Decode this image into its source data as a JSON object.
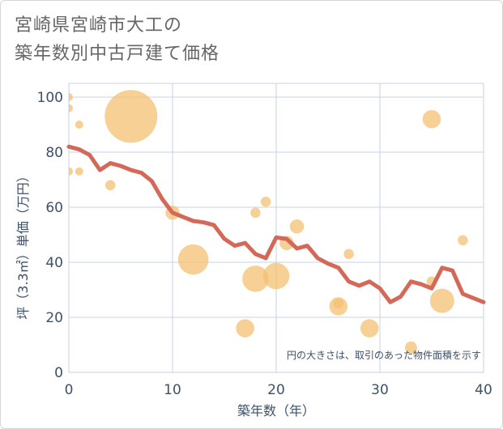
{
  "title_lines": [
    "宮崎県宮崎市大工の",
    "築年数別中古戸建て価格"
  ],
  "chart_data": {
    "type": "scatter",
    "title": "宮崎県宮崎市大工の築年数別中古戸建て価格",
    "xlabel": "築年数（年）",
    "ylabel": "坪（3.3㎡）単価（万円）",
    "xlim": [
      0,
      40
    ],
    "ylim": [
      0,
      105
    ],
    "xticks": [
      0,
      10,
      20,
      30,
      40
    ],
    "yticks": [
      0,
      20,
      40,
      60,
      80,
      100
    ],
    "grid": true,
    "note": "円の大きさは、取引のあった物件面積を示す",
    "colors": {
      "bubble": "#f3c072",
      "line": "#d4695a",
      "grid": "#c7d2e4",
      "text": "#3d5168"
    },
    "series": [
      {
        "type": "scatter",
        "points": [
          {
            "x": 0,
            "y": 100,
            "size": 4
          },
          {
            "x": 0,
            "y": 96,
            "size": 4
          },
          {
            "x": 0,
            "y": 73,
            "size": 4
          },
          {
            "x": 1,
            "y": 90,
            "size": 4
          },
          {
            "x": 1,
            "y": 73,
            "size": 4
          },
          {
            "x": 4,
            "y": 68,
            "size": 5
          },
          {
            "x": 6,
            "y": 93,
            "size": 26
          },
          {
            "x": 10,
            "y": 58,
            "size": 7
          },
          {
            "x": 12,
            "y": 41,
            "size": 15
          },
          {
            "x": 17,
            "y": 16,
            "size": 9
          },
          {
            "x": 18,
            "y": 58,
            "size": 5
          },
          {
            "x": 18,
            "y": 34,
            "size": 13
          },
          {
            "x": 19,
            "y": 62,
            "size": 5
          },
          {
            "x": 20,
            "y": 35,
            "size": 13
          },
          {
            "x": 21,
            "y": 47,
            "size": 7
          },
          {
            "x": 22,
            "y": 53,
            "size": 7
          },
          {
            "x": 26,
            "y": 24,
            "size": 9
          },
          {
            "x": 26,
            "y": 25,
            "size": 5
          },
          {
            "x": 27,
            "y": 43,
            "size": 5
          },
          {
            "x": 29,
            "y": 16,
            "size": 9
          },
          {
            "x": 33,
            "y": 9,
            "size": 6
          },
          {
            "x": 35,
            "y": 92,
            "size": 9
          },
          {
            "x": 35,
            "y": 33,
            "size": 5
          },
          {
            "x": 36,
            "y": 26,
            "size": 12
          },
          {
            "x": 38,
            "y": 48,
            "size": 5
          }
        ]
      },
      {
        "type": "line",
        "x": [
          0,
          1,
          2,
          3,
          4,
          5,
          6,
          7,
          8,
          9,
          10,
          11,
          12,
          13,
          14,
          15,
          16,
          17,
          18,
          19,
          20,
          21,
          22,
          23,
          24,
          25,
          26,
          27,
          28,
          29,
          30,
          31,
          32,
          33,
          34,
          35,
          36,
          37,
          38,
          39,
          40
        ],
        "y": [
          82,
          81,
          79,
          73.5,
          76,
          75,
          73.5,
          72.5,
          69.5,
          63,
          58,
          56.5,
          55,
          54.5,
          53.5,
          48.5,
          46,
          47,
          43,
          41.5,
          49,
          48.5,
          45,
          46,
          41.5,
          39.5,
          38,
          33,
          31.5,
          33,
          30.5,
          25.5,
          27.5,
          33,
          32,
          30.5,
          38,
          37,
          28.5,
          27,
          25.5
        ]
      }
    ]
  }
}
